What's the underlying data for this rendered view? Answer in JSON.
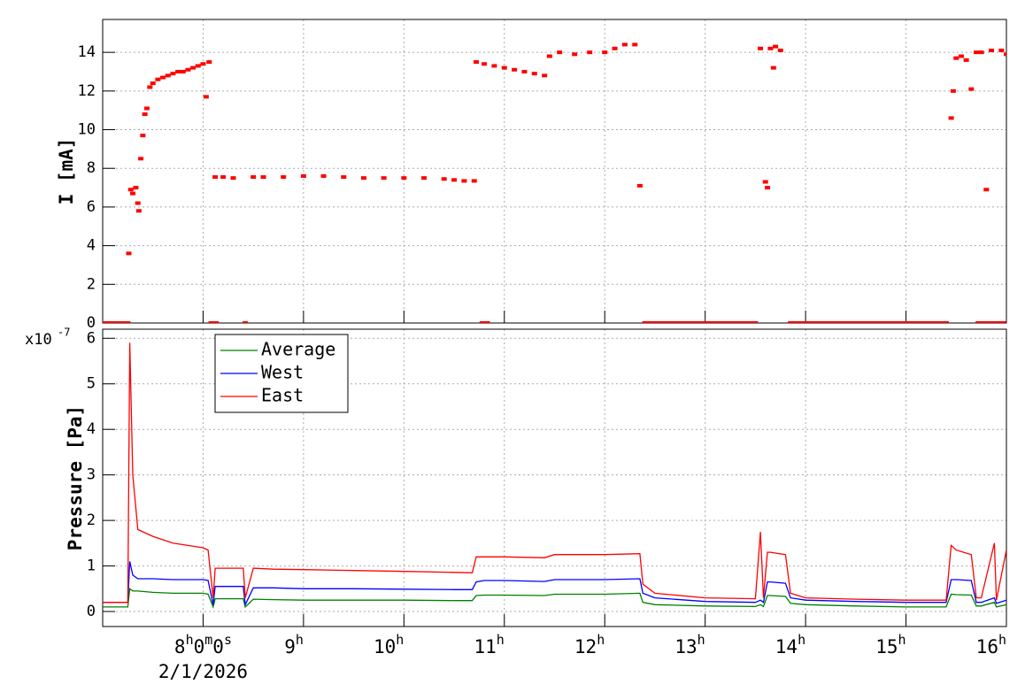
{
  "chart_data": [
    {
      "type": "scatter",
      "y_label": "I [mA]",
      "color": "#ff0000",
      "x": [
        7.26,
        7.28,
        7.3,
        7.33,
        7.35,
        7.36,
        7.38,
        7.4,
        7.42,
        7.44,
        7.47,
        7.5,
        7.55,
        7.6,
        7.65,
        7.7,
        7.75,
        7.8,
        7.85,
        7.9,
        7.95,
        8.0,
        8.03,
        8.06,
        8.12,
        8.2,
        8.3,
        8.5,
        8.6,
        8.8,
        9.0,
        9.2,
        9.4,
        9.6,
        9.8,
        10.0,
        10.2,
        10.4,
        10.5,
        10.6,
        10.7,
        10.72,
        10.8,
        10.9,
        11.0,
        11.1,
        11.2,
        11.3,
        11.4,
        11.45,
        11.55,
        11.7,
        11.85,
        12.0,
        12.1,
        12.2,
        12.3,
        12.35,
        13.55,
        13.6,
        13.62,
        13.65,
        13.7,
        13.75,
        13.68,
        15.45,
        15.47,
        15.5,
        15.55,
        15.6,
        15.65,
        15.7,
        15.75,
        15.8,
        15.85,
        15.95,
        16.0,
        7.0,
        7.05,
        7.1,
        7.15,
        7.2,
        7.25,
        8.08,
        8.13,
        8.42,
        10.78,
        10.83,
        12.4,
        12.45,
        12.5,
        12.55,
        12.6,
        12.65,
        12.7,
        12.75,
        12.8,
        12.85,
        12.9,
        12.95,
        13.0,
        13.05,
        13.1,
        13.15,
        13.2,
        13.25,
        13.3,
        13.35,
        13.4,
        13.45,
        13.5,
        13.85,
        13.9,
        13.95,
        14.0,
        14.05,
        14.1,
        14.15,
        14.2,
        14.25,
        14.3,
        14.35,
        14.4,
        14.45,
        14.5,
        14.55,
        14.6,
        14.65,
        14.7,
        14.75,
        14.8,
        14.85,
        14.9,
        14.95,
        15.0,
        15.05,
        15.1,
        15.15,
        15.2,
        15.25,
        15.3,
        15.35,
        15.4,
        15.72,
        15.77,
        15.82,
        15.87,
        15.92,
        15.97
      ],
      "values": [
        3.6,
        6.9,
        6.7,
        7.0,
        6.2,
        5.8,
        8.5,
        9.7,
        10.8,
        11.1,
        12.2,
        12.4,
        12.6,
        12.7,
        12.8,
        12.9,
        13.0,
        13.0,
        13.1,
        13.2,
        13.3,
        13.4,
        11.7,
        13.5,
        7.55,
        7.55,
        7.5,
        7.55,
        7.55,
        7.55,
        7.6,
        7.6,
        7.55,
        7.5,
        7.5,
        7.5,
        7.5,
        7.45,
        7.4,
        7.35,
        7.35,
        13.5,
        13.4,
        13.3,
        13.2,
        13.1,
        13.0,
        12.9,
        12.8,
        13.8,
        14.0,
        13.9,
        14.0,
        14.0,
        14.2,
        14.4,
        14.4,
        7.1,
        14.2,
        7.3,
        7.0,
        14.2,
        14.3,
        14.1,
        13.2,
        10.6,
        12.0,
        13.7,
        13.8,
        13.6,
        12.1,
        14.0,
        14.0,
        6.9,
        14.1,
        14.1,
        13.9,
        0,
        0,
        0,
        0,
        0,
        0,
        0,
        0,
        0,
        0,
        0,
        0,
        0,
        0,
        0,
        0,
        0,
        0,
        0,
        0,
        0,
        0,
        0,
        0,
        0,
        0,
        0,
        0,
        0,
        0,
        0,
        0,
        0,
        0,
        0,
        0,
        0,
        0,
        0,
        0,
        0,
        0,
        0,
        0,
        0,
        0,
        0,
        0,
        0,
        0,
        0,
        0,
        0,
        0,
        0,
        0,
        0,
        0,
        0,
        0,
        0,
        0,
        0,
        0,
        0,
        0,
        0,
        0,
        0,
        0,
        0,
        0
      ],
      "xlim": [
        7,
        16
      ],
      "xticks": [
        8,
        9,
        10,
        11,
        12,
        13,
        14,
        15,
        16
      ],
      "ylim": [
        0,
        15.7
      ],
      "yticks": [
        0,
        2,
        4,
        6,
        8,
        10,
        12,
        14
      ],
      "grid": true
    },
    {
      "type": "line",
      "y_label": "Pressure [Pa]",
      "y_exponent": {
        "base": "x10",
        "exponent": "-7"
      },
      "x": [
        7.0,
        7.25,
        7.27,
        7.3,
        7.35,
        7.5,
        7.7,
        8.0,
        8.05,
        8.1,
        8.12,
        8.4,
        8.42,
        8.5,
        8.7,
        9.0,
        9.5,
        10.0,
        10.5,
        10.68,
        10.72,
        10.8,
        11.0,
        11.4,
        11.5,
        12.0,
        12.35,
        12.38,
        12.5,
        13.0,
        13.5,
        13.55,
        13.58,
        13.62,
        13.65,
        13.8,
        13.85,
        14.0,
        14.5,
        15.0,
        15.4,
        15.45,
        15.5,
        15.65,
        15.7,
        15.75,
        15.88,
        15.9,
        16.0
      ],
      "series": [
        {
          "name": "Average",
          "color": "#008000",
          "values": [
            0.1,
            0.1,
            0.5,
            0.45,
            0.45,
            0.42,
            0.4,
            0.4,
            0.38,
            0.1,
            0.28,
            0.28,
            0.1,
            0.27,
            0.26,
            0.25,
            0.25,
            0.25,
            0.24,
            0.24,
            0.35,
            0.36,
            0.36,
            0.35,
            0.38,
            0.38,
            0.4,
            0.2,
            0.15,
            0.12,
            0.11,
            0.15,
            0.11,
            0.35,
            0.35,
            0.33,
            0.18,
            0.15,
            0.12,
            0.1,
            0.1,
            0.38,
            0.37,
            0.36,
            0.12,
            0.12,
            0.2,
            0.1,
            0.15
          ]
        },
        {
          "name": "West",
          "color": "#0000ff",
          "values": [
            0.2,
            0.2,
            1.1,
            0.8,
            0.72,
            0.72,
            0.7,
            0.7,
            0.68,
            0.15,
            0.55,
            0.55,
            0.15,
            0.52,
            0.52,
            0.5,
            0.5,
            0.49,
            0.48,
            0.48,
            0.65,
            0.68,
            0.68,
            0.66,
            0.7,
            0.7,
            0.72,
            0.4,
            0.3,
            0.22,
            0.2,
            0.25,
            0.2,
            0.65,
            0.65,
            0.62,
            0.3,
            0.25,
            0.22,
            0.2,
            0.2,
            0.7,
            0.7,
            0.68,
            0.2,
            0.2,
            0.3,
            0.18,
            0.25
          ]
        },
        {
          "name": "East",
          "color": "#ff0000",
          "values": [
            0.2,
            0.2,
            5.9,
            3.0,
            1.8,
            1.65,
            1.5,
            1.4,
            1.35,
            0.3,
            0.95,
            0.95,
            0.3,
            0.95,
            0.93,
            0.92,
            0.9,
            0.88,
            0.86,
            0.85,
            1.2,
            1.2,
            1.2,
            1.18,
            1.25,
            1.25,
            1.27,
            0.6,
            0.4,
            0.3,
            0.28,
            1.75,
            0.3,
            1.3,
            1.3,
            1.25,
            0.4,
            0.3,
            0.27,
            0.25,
            0.25,
            1.45,
            1.35,
            1.25,
            0.3,
            0.3,
            1.5,
            0.25,
            1.35
          ]
        }
      ],
      "xlim": [
        7,
        16
      ],
      "xticks": [
        {
          "value": 8,
          "label": "8h0m0s"
        },
        {
          "value": 9,
          "label": "9h"
        },
        {
          "value": 10,
          "label": "10h"
        },
        {
          "value": 11,
          "label": "11h"
        },
        {
          "value": 12,
          "label": "12h"
        },
        {
          "value": 13,
          "label": "13h"
        },
        {
          "value": 14,
          "label": "14h"
        },
        {
          "value": 15,
          "label": "15h"
        },
        {
          "value": 16,
          "label": "16h"
        }
      ],
      "time_offset_label": "2/1/2026",
      "ylim": [
        -0.33,
        6.2
      ],
      "yticks": [
        0,
        1,
        2,
        3,
        4,
        5,
        6
      ],
      "grid": true,
      "legend": "top-left"
    }
  ]
}
